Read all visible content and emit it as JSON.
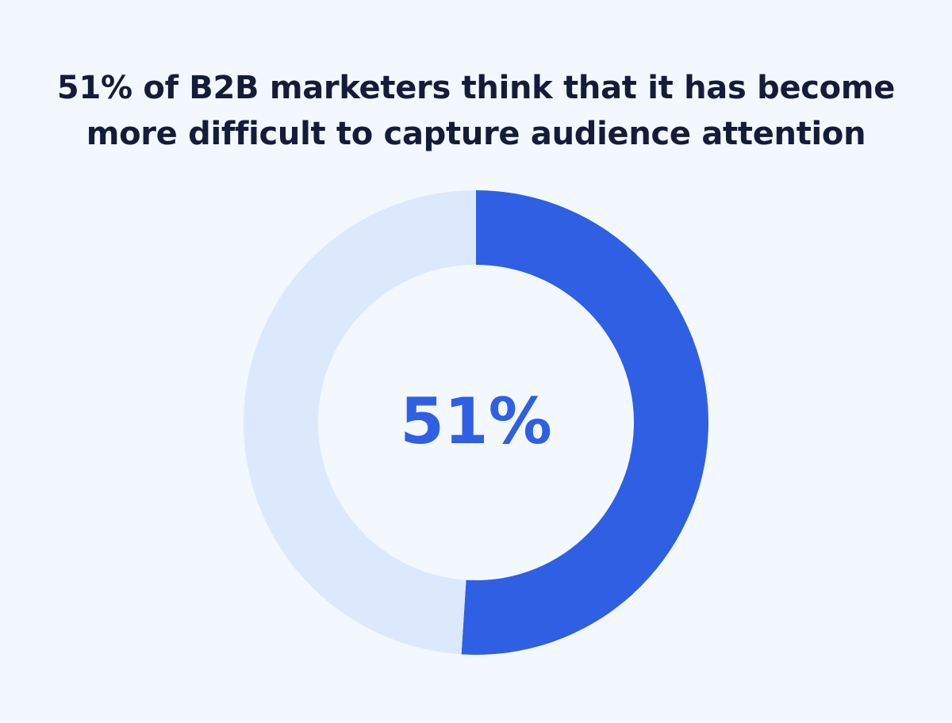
{
  "chart_data": {
    "type": "pie",
    "title": "51% of B2B marketers think that it has become more difficult to capture audience attention",
    "slices": [
      {
        "value": 51,
        "color": "#2f5fe3"
      },
      {
        "value": 49,
        "color": "#dce8fc"
      }
    ],
    "center_label": "51%",
    "center_label_color": "#2f5fe3",
    "unit": "%"
  },
  "colors": {
    "background": "#f2f8fe",
    "title": "#141c3a"
  }
}
